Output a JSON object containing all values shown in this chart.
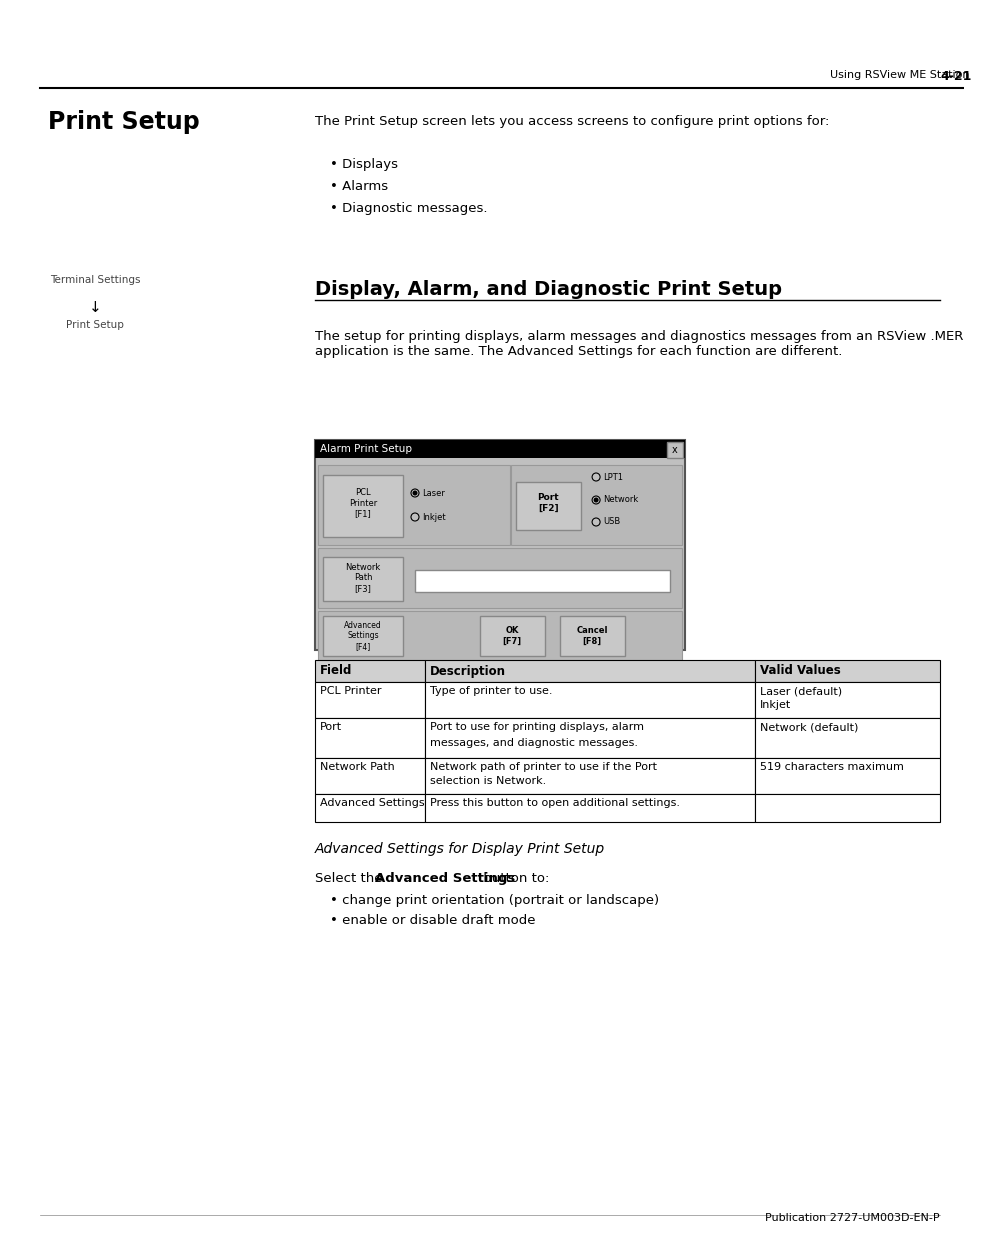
{
  "bg_color": "#ffffff",
  "header_text": "Using RSView ME Station",
  "header_page": "4-21",
  "footer_text": "Publication 2727-UM003D-EN-P",
  "title_main": "Print Setup",
  "title_section": "Display, Alarm, and Diagnostic Print Setup",
  "subtitle_italic": "Advanced Settings for Display Print Setup",
  "intro_text": "The Print Setup screen lets you access screens to configure print options for:",
  "bullet_items": [
    "Displays",
    "Alarms",
    "Diagnostic messages."
  ],
  "section_text1": "The setup for printing displays, alarm messages and diagnostics messages from an RSView .MER application is the same. The Advanced Settings for each function are different.",
  "sidebar_label1": "Terminal Settings",
  "sidebar_arrow": "↓",
  "sidebar_label2": "Print Setup",
  "dialog_title": "Alarm Print Setup",
  "dialog_bg": "#c0c0c0",
  "dialog_title_bg": "#000000",
  "dialog_title_color": "#ffffff",
  "button_bg": "#c0c0c0",
  "button_border": "#808080",
  "inner_button_bg": "#c0c0c0",
  "text_input_bg": "#ffffff",
  "table_headers": [
    "Field",
    "Description",
    "Valid Values"
  ],
  "table_rows": [
    [
      "PCL Printer",
      "Type of printer to use.",
      "Laser (default)\nInkjet"
    ],
    [
      "Port",
      "Port to use for printing displays, alarm\nmessages, and diagnostic messages.",
      "Network (default)"
    ],
    [
      "Network Path",
      "Network path of printer to use if the Port\nselection is Network.",
      "519 characters maximum"
    ],
    [
      "Advanced Settings",
      "Press this button to open additional settings.",
      ""
    ]
  ],
  "advanced_text": "Select the ",
  "advanced_bold": "Advanced Settings",
  "advanced_text2": " button to:",
  "advanced_bullets": [
    "change print orientation (portrait or landscape)",
    "enable or disable draft mode"
  ]
}
